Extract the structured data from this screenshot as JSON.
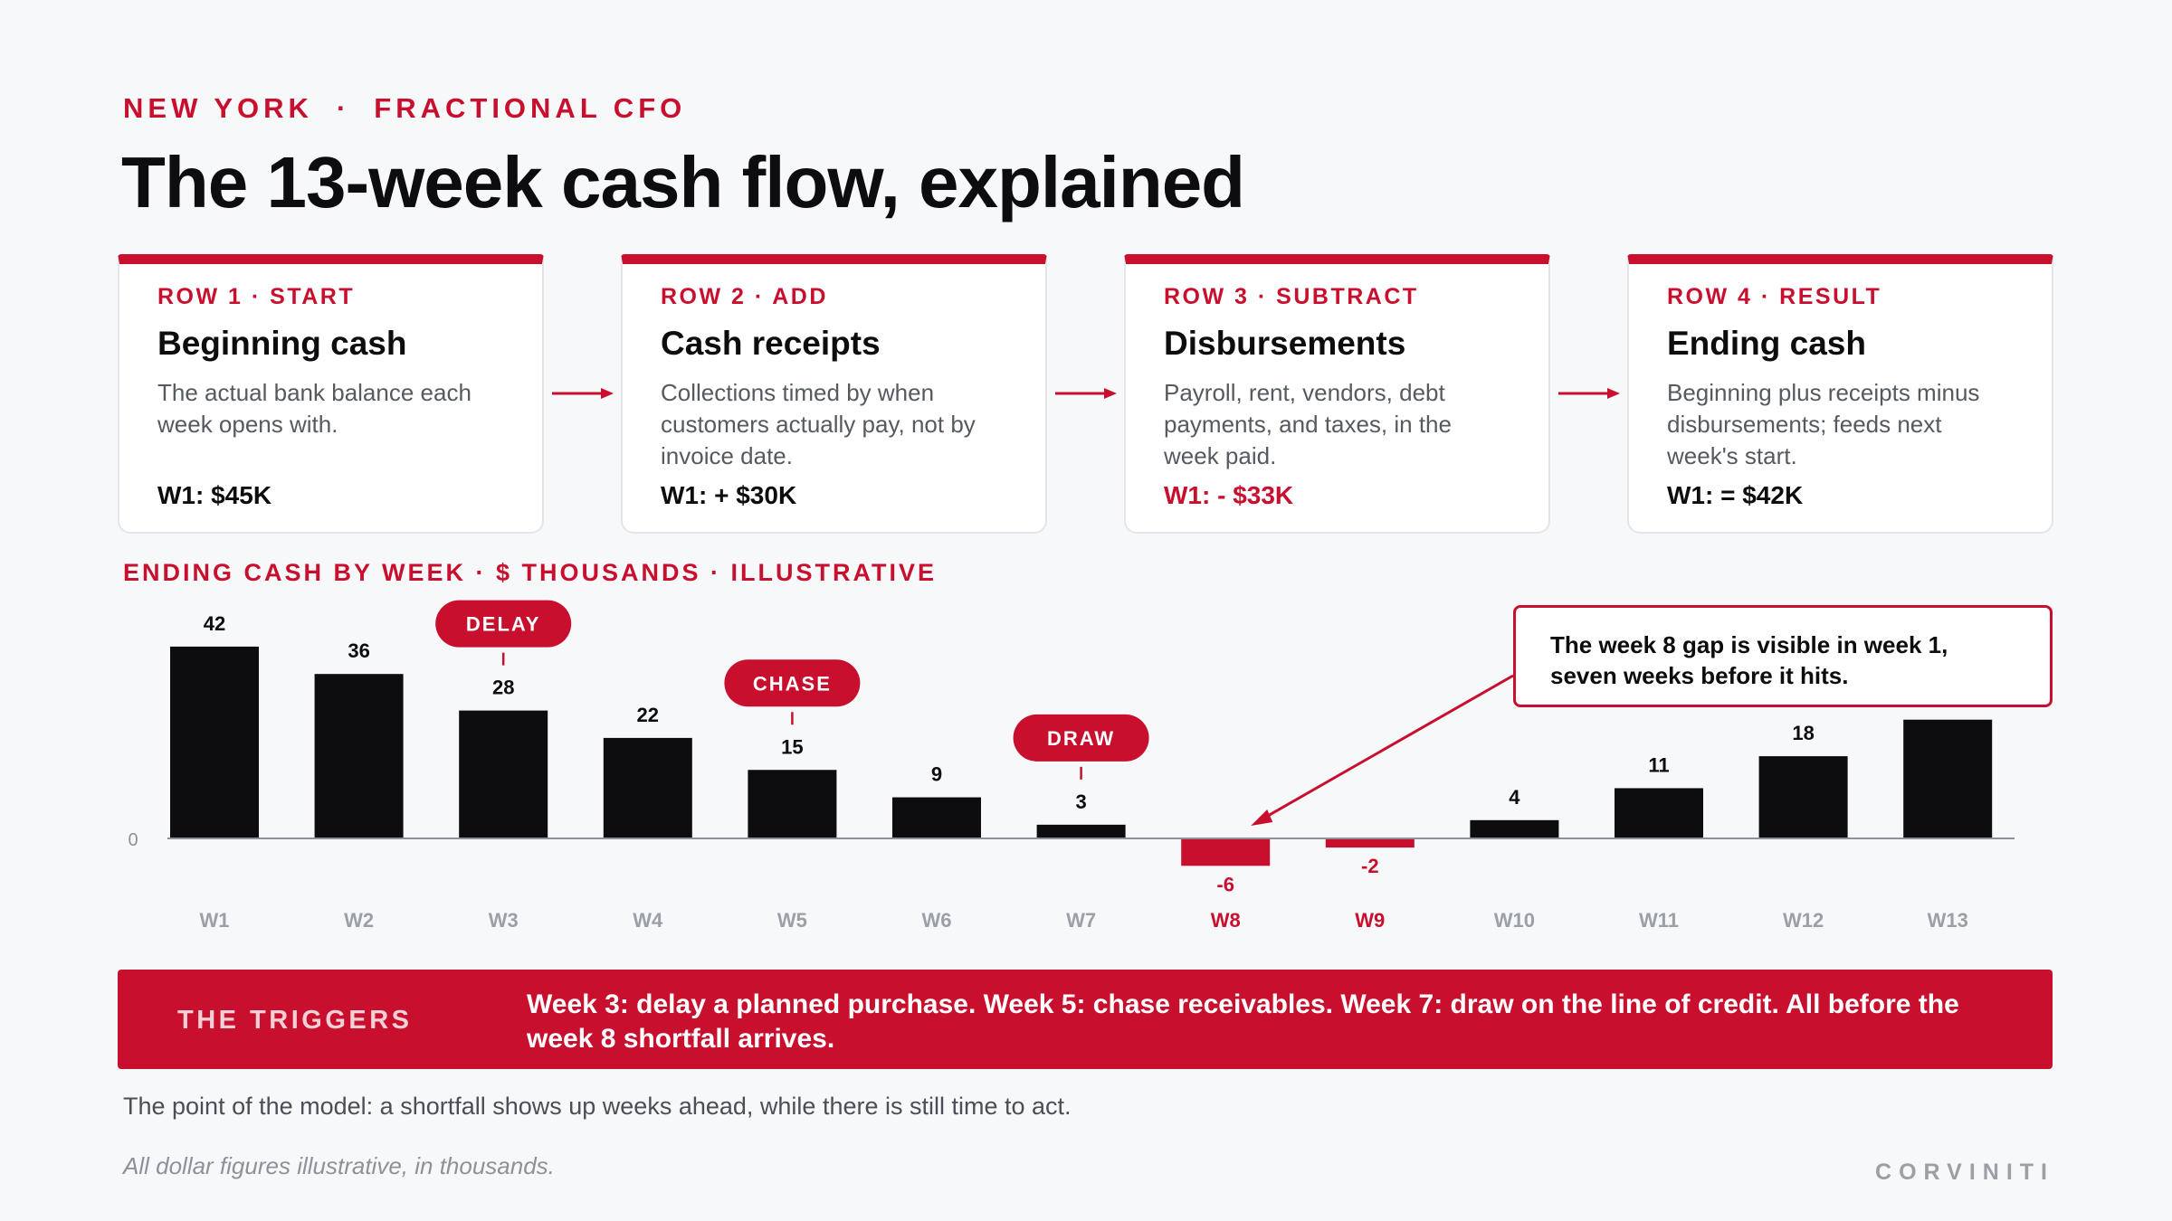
{
  "header": {
    "eyebrow_city": "NEW YORK",
    "eyebrow_sep": "·",
    "eyebrow_role": "FRACTIONAL CFO",
    "title": "The 13-week cash flow, explained"
  },
  "rows": [
    {
      "tag": "ROW 1 · START",
      "title": "Beginning cash",
      "desc": "The actual bank balance each week opens with.",
      "w1": "W1: $45K"
    },
    {
      "tag": "ROW 2 · ADD",
      "title": "Cash receipts",
      "desc": "Collections timed by when customers actually pay, not by invoice date.",
      "w1": "W1: + $30K"
    },
    {
      "tag": "ROW 3 · SUBTRACT",
      "title": "Disbursements",
      "desc": "Payroll, rent, vendors, debt payments, and taxes, in the week paid.",
      "w1": "W1: - $33K"
    },
    {
      "tag": "ROW 4 · RESULT",
      "title": "Ending cash",
      "desc": "Beginning plus receipts minus disbursements; feeds next week's start.",
      "w1": "W1: = $42K"
    }
  ],
  "chart_label": "ENDING CASH BY WEEK · $ THOUSANDS · ILLUSTRATIVE",
  "chart_data": {
    "type": "bar",
    "categories": [
      "W1",
      "W2",
      "W3",
      "W4",
      "W5",
      "W6",
      "W7",
      "W8",
      "W9",
      "W10",
      "W11",
      "W12",
      "W13"
    ],
    "values": [
      42,
      36,
      28,
      22,
      15,
      9,
      3,
      -6,
      -2,
      4,
      11,
      18,
      26
    ],
    "value_labels": [
      "42",
      "36",
      "28",
      "22",
      "15",
      "9",
      "3",
      "-6",
      "-2",
      "4",
      "11",
      "18",
      ""
    ],
    "zero_label": "0",
    "highlight_categories": [
      "W8",
      "W9"
    ],
    "annotations": [
      {
        "category": "W3",
        "text": "DELAY"
      },
      {
        "category": "W5",
        "text": "CHASE"
      },
      {
        "category": "W7",
        "text": "DRAW"
      }
    ],
    "colors": {
      "positive": "#0d0d0f",
      "negative": "#c8102e",
      "axis_label": "#9ba0a6"
    }
  },
  "callout": {
    "text": "The week 8 gap is visible in week 1, seven weeks before it hits."
  },
  "triggers": {
    "label": "THE TRIGGERS",
    "text": "Week 3: delay a planned purchase. Week 5: chase receivables. Week 7: draw on the line of credit. All before the week 8 shortfall arrives."
  },
  "point": "The point of the model: a shortfall shows up weeks ahead, while there is still time to act.",
  "footnote": "All dollar figures illustrative, in thousands.",
  "brand": "CORVINITI",
  "colors": {
    "accent": "#c8102e",
    "ink": "#0d0d0f",
    "background": "#f7f8fa"
  }
}
